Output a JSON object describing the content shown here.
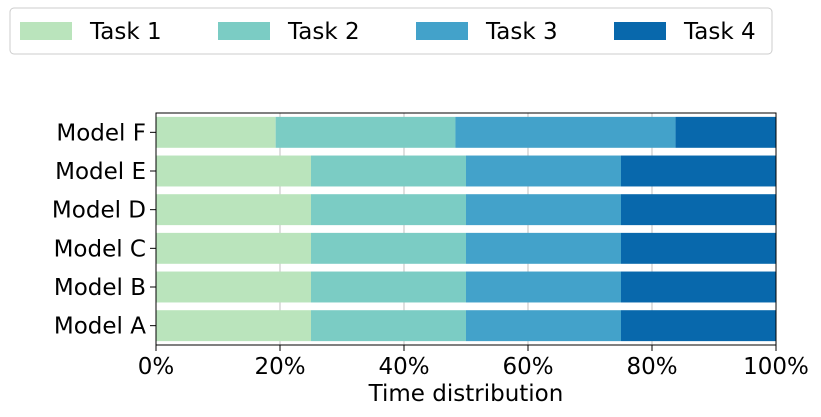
{
  "chart_data": {
    "type": "bar",
    "orientation": "horizontal",
    "stacked": true,
    "title": "",
    "xlabel": "Time distribution",
    "ylabel": "",
    "xlim": [
      0,
      100
    ],
    "x_unit": "%",
    "x_ticks": [
      "0%",
      "20%",
      "40%",
      "60%",
      "80%",
      "100%"
    ],
    "categories": [
      "Model A",
      "Model B",
      "Model C",
      "Model D",
      "Model E",
      "Model F"
    ],
    "series": [
      {
        "name": "Task 1",
        "color": "#bae4bc",
        "values": [
          25,
          25,
          25,
          25,
          25,
          19.3
        ]
      },
      {
        "name": "Task 2",
        "color": "#7bccc4",
        "values": [
          25,
          25,
          25,
          25,
          25,
          29.0
        ]
      },
      {
        "name": "Task 3",
        "color": "#43a2ca",
        "values": [
          25,
          25,
          25,
          25,
          25,
          35.5
        ]
      },
      {
        "name": "Task 4",
        "color": "#0868ac",
        "values": [
          25,
          25,
          25,
          25,
          25,
          16.2
        ]
      }
    ],
    "grid": "x",
    "legend_position": "top"
  }
}
